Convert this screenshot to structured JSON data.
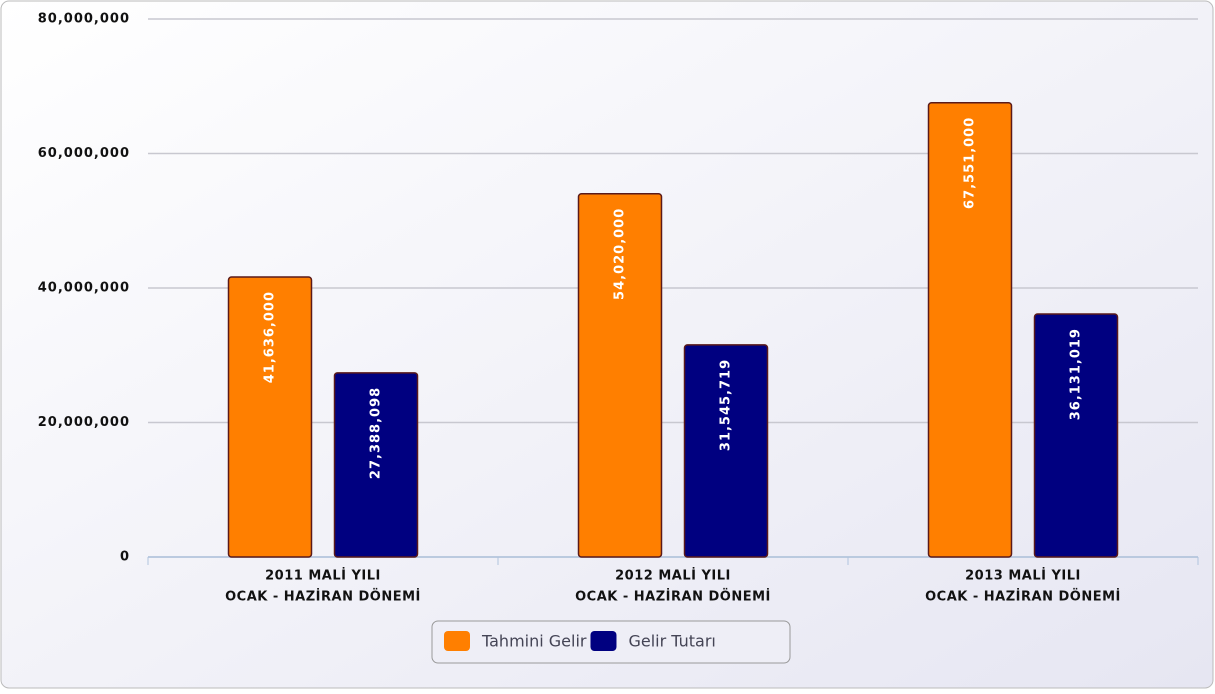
{
  "chart_data": {
    "type": "bar",
    "categories": [
      [
        "2011 MALİ YILI",
        "OCAK - HAZİRAN DÖNEMİ"
      ],
      [
        "2012 MALİ YILI",
        "OCAK - HAZİRAN DÖNEMİ"
      ],
      [
        "2013 MALİ YILI",
        "OCAK - HAZİRAN DÖNEMİ"
      ]
    ],
    "series": [
      {
        "name": "Tahmini Gelir",
        "color": "#ff7f00",
        "values": [
          41636000,
          54020000,
          67551000
        ],
        "value_labels": [
          "41,636,000",
          "54,020,000",
          "67,551,000"
        ]
      },
      {
        "name": "Gelir Tutarı",
        "color": "#000080",
        "values": [
          27388098,
          31545719,
          36131019
        ],
        "value_labels": [
          "27,388,098",
          "31,545,719",
          "36,131,019"
        ]
      }
    ],
    "ylim": [
      0,
      80000000
    ],
    "yticks": [
      0,
      {
        "value": 20000000,
        "label": "20,000,000"
      },
      {
        "value": 40000000,
        "label": "40,000,000"
      },
      {
        "value": 60000000,
        "label": "60,000,000"
      },
      {
        "value": 80000000,
        "label": "80,000,000"
      }
    ],
    "grid": true,
    "legend": "bottom"
  }
}
